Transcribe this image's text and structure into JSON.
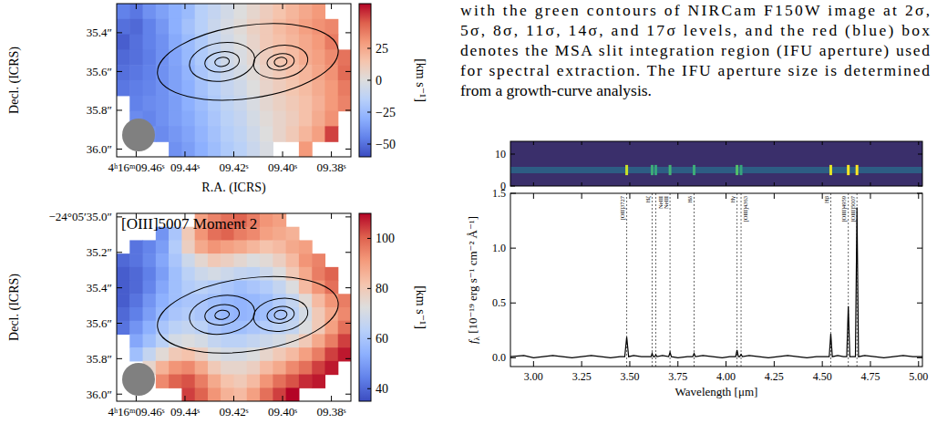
{
  "caption_lines": [
    "with the green contours of NIRCam F150W image at 2σ,",
    "5σ, 8σ, 11σ, 14σ, and 17σ levels, and the red (blue) box",
    "denotes the MSA slit integration region (IFU aperture) used",
    "for spectral extraction. The IFU aperture size is determined",
    "from a growth-curve analysis."
  ],
  "chart_data": [
    {
      "type": "heatmap",
      "xlabel": "R.A. (ICRS)",
      "ylabel": "Decl. (ICRS)",
      "xlim": [
        9.468,
        9.372
      ],
      "xticks": [
        {
          "value": 9.46,
          "label": "4ʰ16ᵐ09.46ˢ"
        },
        {
          "value": 9.44,
          "label": "09.44ˢ"
        },
        {
          "value": 9.42,
          "label": "09.42ˢ"
        },
        {
          "value": 9.4,
          "label": "09.40ˢ"
        },
        {
          "value": 9.38,
          "label": "09.38ˢ"
        }
      ],
      "ylim": [
        35.25,
        36.04
      ],
      "yticks": [
        {
          "value": 35.4,
          "label": "35.4″"
        },
        {
          "value": 35.6,
          "label": "35.6″"
        },
        {
          "value": 35.8,
          "label": "35.8″"
        },
        {
          "value": 36.0,
          "label": "36.0″"
        }
      ],
      "cells": [
        [
          -45,
          -48,
          -40,
          -35,
          -30,
          -25,
          -15,
          -10,
          -5,
          0,
          5,
          10,
          15,
          20,
          25,
          30,
          null,
          null
        ],
        [
          -50,
          -52,
          -45,
          -38,
          -30,
          -22,
          -15,
          -8,
          -3,
          2,
          8,
          12,
          18,
          22,
          28,
          32,
          35,
          null
        ],
        [
          -55,
          -50,
          -45,
          -40,
          -32,
          -25,
          -18,
          -10,
          -5,
          0,
          6,
          12,
          16,
          20,
          25,
          30,
          38,
          null
        ],
        [
          -52,
          -50,
          -46,
          -40,
          -34,
          -26,
          -18,
          -12,
          -6,
          -2,
          4,
          10,
          14,
          18,
          24,
          28,
          34,
          40
        ],
        [
          -50,
          -48,
          -45,
          -40,
          -35,
          -28,
          -20,
          -14,
          -8,
          -4,
          2,
          8,
          12,
          16,
          20,
          26,
          32,
          42
        ],
        [
          -48,
          -46,
          -44,
          -40,
          -35,
          -30,
          -22,
          -16,
          -10,
          -6,
          0,
          6,
          10,
          14,
          18,
          24,
          30,
          38
        ],
        [
          null,
          -45,
          -42,
          -40,
          -36,
          -30,
          -24,
          -18,
          -12,
          -8,
          -2,
          4,
          8,
          12,
          16,
          22,
          30,
          36
        ],
        [
          null,
          -42,
          -44,
          -40,
          -36,
          -32,
          -26,
          -20,
          -14,
          -10,
          -4,
          2,
          6,
          10,
          16,
          24,
          32,
          null
        ],
        [
          null,
          null,
          -40,
          -42,
          -38,
          -34,
          -28,
          -22,
          -16,
          -12,
          -6,
          0,
          6,
          12,
          20,
          28,
          50,
          null
        ],
        [
          null,
          null,
          null,
          null,
          -40,
          -36,
          -30,
          -24,
          -18,
          -14,
          -8,
          -2,
          null,
          null,
          30,
          null,
          null,
          null
        ]
      ],
      "colorbar_range": [
        -60,
        60
      ],
      "colorbar_ticks": [
        {
          "value": -50,
          "label": "−50"
        },
        {
          "value": -25,
          "label": "−25"
        },
        0,
        25
      ],
      "colorbar_label": "[km s⁻¹]"
    },
    {
      "type": "heatmap",
      "title": "[OIII]5007 Moment 2",
      "ylabel": "Decl. (ICRS)",
      "xlim": [
        9.468,
        9.372
      ],
      "xticks": [
        {
          "value": 9.46,
          "label": "4ʰ16ᵐ09.46ˢ"
        },
        {
          "value": 9.44,
          "label": "09.44ˢ"
        },
        {
          "value": 9.42,
          "label": "09.42ˢ"
        },
        {
          "value": 9.4,
          "label": "09.40ˢ"
        },
        {
          "value": 9.38,
          "label": "09.38ˢ"
        }
      ],
      "ylim": [
        34.98,
        36.04
      ],
      "yticks": [
        {
          "value": 35.0,
          "label": "−24°05′35.0″"
        },
        {
          "value": 35.2,
          "label": "35.2″"
        },
        {
          "value": 35.4,
          "label": "35.4″"
        },
        {
          "value": 35.6,
          "label": "35.6″"
        },
        {
          "value": 35.8,
          "label": "35.8″"
        },
        {
          "value": 36.0,
          "label": "36.0″"
        }
      ],
      "cells": [
        [
          null,
          null,
          null,
          null,
          null,
          null,
          90,
          95,
          98,
          100,
          96,
          92,
          90,
          null,
          null,
          null,
          null,
          null
        ],
        [
          null,
          null,
          null,
          48,
          60,
          80,
          92,
          98,
          100,
          96,
          94,
          90,
          88,
          86,
          null,
          null,
          null,
          null
        ],
        [
          null,
          42,
          45,
          50,
          62,
          78,
          88,
          92,
          90,
          88,
          85,
          82,
          84,
          88,
          90,
          null,
          null,
          null
        ],
        [
          40,
          42,
          46,
          52,
          60,
          68,
          75,
          80,
          78,
          75,
          72,
          74,
          78,
          84,
          92,
          95,
          null,
          null
        ],
        [
          38,
          40,
          44,
          50,
          58,
          64,
          68,
          70,
          68,
          66,
          65,
          68,
          72,
          80,
          88,
          96,
          100,
          null
        ],
        [
          38,
          40,
          45,
          52,
          58,
          62,
          64,
          62,
          60,
          58,
          60,
          62,
          66,
          72,
          84,
          92,
          98,
          null
        ],
        [
          38,
          42,
          48,
          54,
          58,
          60,
          60,
          58,
          56,
          55,
          56,
          58,
          62,
          66,
          74,
          84,
          92,
          96
        ],
        [
          40,
          44,
          50,
          56,
          60,
          62,
          60,
          58,
          56,
          55,
          56,
          58,
          60,
          64,
          70,
          80,
          88,
          94
        ],
        [
          42,
          48,
          54,
          60,
          64,
          66,
          64,
          60,
          58,
          58,
          60,
          62,
          64,
          66,
          72,
          80,
          90,
          98
        ],
        [
          null,
          52,
          58,
          64,
          70,
          72,
          70,
          66,
          64,
          64,
          66,
          68,
          70,
          74,
          80,
          88,
          96,
          104
        ],
        [
          null,
          58,
          66,
          74,
          80,
          82,
          78,
          72,
          70,
          70,
          72,
          76,
          80,
          84,
          90,
          96,
          104,
          108
        ],
        [
          null,
          null,
          76,
          86,
          92,
          94,
          88,
          80,
          76,
          76,
          78,
          84,
          88,
          94,
          98,
          104,
          108,
          null
        ],
        [
          null,
          null,
          null,
          94,
          100,
          102,
          96,
          88,
          82,
          80,
          84,
          92,
          98,
          102,
          106,
          108,
          null,
          null
        ],
        [
          null,
          null,
          null,
          null,
          null,
          104,
          100,
          92,
          86,
          84,
          90,
          98,
          104,
          110,
          null,
          null,
          null,
          null
        ]
      ],
      "colorbar_range": [
        35,
        110
      ],
      "colorbar_ticks": [
        40,
        60,
        80,
        100
      ],
      "colorbar_label": "[km s⁻¹]"
    },
    {
      "type": "image",
      "xlim": [
        2.88,
        5.02
      ],
      "ylim": [
        0,
        14
      ],
      "yticks": [
        0,
        10
      ],
      "trace_row": 5,
      "tick_labels": "y"
    },
    {
      "type": "line",
      "color": "#000000",
      "xlabel": "Wavelength [μm]",
      "ylabel": "fλ [10⁻¹⁹ erg s⁻¹ cm⁻² Å⁻¹]",
      "xlim": [
        2.88,
        5.02
      ],
      "xticks": [
        {
          "value": 3.0,
          "label": "3.00"
        },
        {
          "value": 3.25,
          "label": "3.25"
        },
        {
          "value": 3.5,
          "label": "3.50"
        },
        {
          "value": 3.75,
          "label": "3.75"
        },
        {
          "value": 4.0,
          "label": "4.00"
        },
        {
          "value": 4.25,
          "label": "4.25"
        },
        {
          "value": 4.5,
          "label": "4.50"
        },
        {
          "value": 4.75,
          "label": "4.75"
        },
        {
          "value": 5.0,
          "label": "5.00"
        }
      ],
      "ylim": [
        -0.08,
        1.5
      ],
      "yticks": [
        {
          "value": 0,
          "label": "0.0"
        },
        0.5,
        {
          "value": 1,
          "label": "1.0"
        },
        1.5
      ],
      "x": [
        2.88,
        2.95,
        3.0,
        3.05,
        3.1,
        3.15,
        3.2,
        3.25,
        3.3,
        3.35,
        3.4,
        3.45,
        3.474,
        3.484,
        3.494,
        3.52,
        3.56,
        3.6,
        3.611,
        3.616,
        3.622,
        3.63,
        3.635,
        3.641,
        3.67,
        3.702,
        3.709,
        3.716,
        3.75,
        3.8,
        3.827,
        3.834,
        3.841,
        3.88,
        3.93,
        3.98,
        4.02,
        4.05,
        4.057,
        4.064,
        4.071,
        4.078,
        4.085,
        4.12,
        4.17,
        4.22,
        4.27,
        4.32,
        4.37,
        4.42,
        4.47,
        4.52,
        4.536,
        4.544,
        4.552,
        4.58,
        4.61,
        4.627,
        4.635,
        4.643,
        4.66,
        4.672,
        4.68,
        4.688,
        4.72,
        4.77,
        4.82,
        4.87,
        4.92,
        4.97,
        5.02
      ],
      "values": [
        0.01,
        0.02,
        0.0,
        0.01,
        0.02,
        0.01,
        0.0,
        0.01,
        0.02,
        0.01,
        0.0,
        0.01,
        0.01,
        0.19,
        0.01,
        0.02,
        0.01,
        0.01,
        0.01,
        0.04,
        0.01,
        0.01,
        0.03,
        0.01,
        0.02,
        0.01,
        0.05,
        0.01,
        0.0,
        0.01,
        0.01,
        0.04,
        0.01,
        0.02,
        0.01,
        0.0,
        0.01,
        0.01,
        0.07,
        0.01,
        0.01,
        0.03,
        0.01,
        0.02,
        0.01,
        0.0,
        0.01,
        0.02,
        0.01,
        0.0,
        0.01,
        0.01,
        0.01,
        0.22,
        0.01,
        0.02,
        0.01,
        0.01,
        0.47,
        0.01,
        0.01,
        0.01,
        1.37,
        0.01,
        0.02,
        0.01,
        0.0,
        0.01,
        0.02,
        0.01,
        0.01
      ],
      "lines": [
        {
          "label": "[OII]3727",
          "wavelength": 3.484
        },
        {
          "label": "Hζ",
          "wavelength": 3.616
        },
        {
          "label": "NeIII",
          "wavelength": 3.635
        },
        {
          "label": "NeIII",
          "wavelength": 3.709
        },
        {
          "label": "Hδ",
          "wavelength": 3.834
        },
        {
          "label": "Hγ",
          "wavelength": 4.057
        },
        {
          "label": "[OIII]4363",
          "wavelength": 4.078
        },
        {
          "label": "Hβ",
          "wavelength": 4.544
        },
        {
          "label": "[OIII]4959",
          "wavelength": 4.635
        },
        {
          "label": "[OIII]5007",
          "wavelength": 4.68
        }
      ]
    }
  ]
}
